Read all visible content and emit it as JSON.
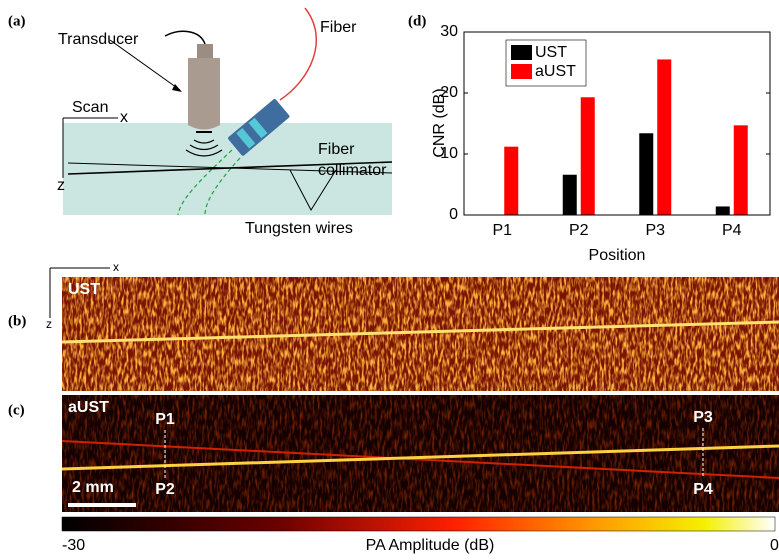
{
  "panel_labels": [
    "(a)",
    "(b)",
    "(c)",
    "(d)"
  ],
  "diagram": {
    "transducer": "Transducer",
    "fiber": "Fiber",
    "collimator": [
      "Fiber",
      "collimator"
    ],
    "scan": "Scan",
    "x": "x",
    "z": "z",
    "wires": "Tungsten wires"
  },
  "images": {
    "axes": {
      "x": "x",
      "z": "z"
    },
    "ust": "UST",
    "aust": "aUST",
    "points": [
      "P1",
      "P2",
      "P3",
      "P4"
    ],
    "scale_bar": "2 mm"
  },
  "colorbar": {
    "label": "PA Amplitude (dB)",
    "min": -30,
    "max": 0
  },
  "chart_data": {
    "type": "bar",
    "xlabel": "Position",
    "ylabel": "CNR (dB)",
    "categories": [
      "P1",
      "P2",
      "P3",
      "P4"
    ],
    "series": [
      {
        "name": "UST",
        "color": "#000000",
        "values": [
          0,
          6.6,
          13.4,
          1.4
        ]
      },
      {
        "name": "aUST",
        "color": "#ff0000",
        "values": [
          11.2,
          19.3,
          25.5,
          14.7
        ]
      }
    ],
    "ylim": [
      0,
      30
    ],
    "yticks": [
      0,
      10,
      20,
      30
    ],
    "legend": "upper left"
  }
}
